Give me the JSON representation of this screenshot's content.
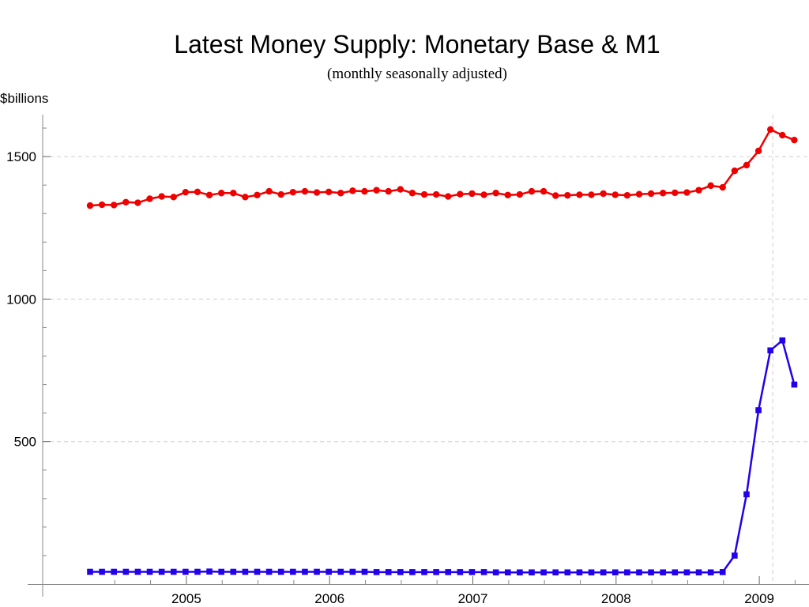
{
  "chart_data": {
    "type": "line",
    "title": "Latest Money Supply: Monetary Base & M1",
    "subtitle": "(monthly seasonally adjusted)",
    "ylabel": "$billions",
    "xlabel": "",
    "x_ticks": [
      {
        "value": 2005,
        "label": "2005"
      },
      {
        "value": 2006,
        "label": "2006"
      },
      {
        "value": 2007,
        "label": "2007"
      },
      {
        "value": 2008,
        "label": "2008"
      },
      {
        "value": 2009,
        "label": "2009"
      }
    ],
    "y_ticks": [
      {
        "value": 500,
        "label": "500"
      },
      {
        "value": 1000,
        "label": "1000"
      },
      {
        "value": 1500,
        "label": "1500"
      }
    ],
    "xlim": [
      2004.0,
      2009.25
    ],
    "ylim": [
      0,
      1650
    ],
    "grid": {
      "horizontal": [
        500,
        1000,
        1500
      ],
      "vertical": [
        2009.0
      ]
    },
    "x_start": 2004.3,
    "x_step": 0.0833333,
    "series": [
      {
        "color": "#ee0000",
        "marker": "circle",
        "values": [
          1328,
          1331,
          1330,
          1340,
          1338,
          1352,
          1360,
          1358,
          1375,
          1376,
          1365,
          1372,
          1372,
          1358,
          1365,
          1378,
          1367,
          1375,
          1378,
          1374,
          1376,
          1372,
          1380,
          1378,
          1382,
          1378,
          1385,
          1372,
          1367,
          1367,
          1360,
          1368,
          1370,
          1366,
          1372,
          1365,
          1367,
          1378,
          1378,
          1363,
          1364,
          1366,
          1366,
          1370,
          1366,
          1364,
          1368,
          1370,
          1372,
          1373,
          1374,
          1382,
          1398,
          1392,
          1450,
          1470,
          1520,
          1595,
          1575,
          1558
        ]
      },
      {
        "color": "#2200ee",
        "marker": "square",
        "values": [
          43,
          43,
          43,
          43,
          43,
          43,
          43,
          43,
          43,
          43,
          44,
          43,
          43,
          43,
          43,
          43,
          43,
          43,
          43,
          43,
          43,
          43,
          43,
          43,
          42,
          42,
          42,
          42,
          42,
          42,
          42,
          42,
          42,
          42,
          41,
          41,
          41,
          41,
          41,
          41,
          41,
          41,
          41,
          41,
          41,
          41,
          41,
          41,
          41,
          41,
          41,
          41,
          41,
          42,
          100,
          315,
          610,
          820,
          855,
          700
        ]
      }
    ]
  }
}
